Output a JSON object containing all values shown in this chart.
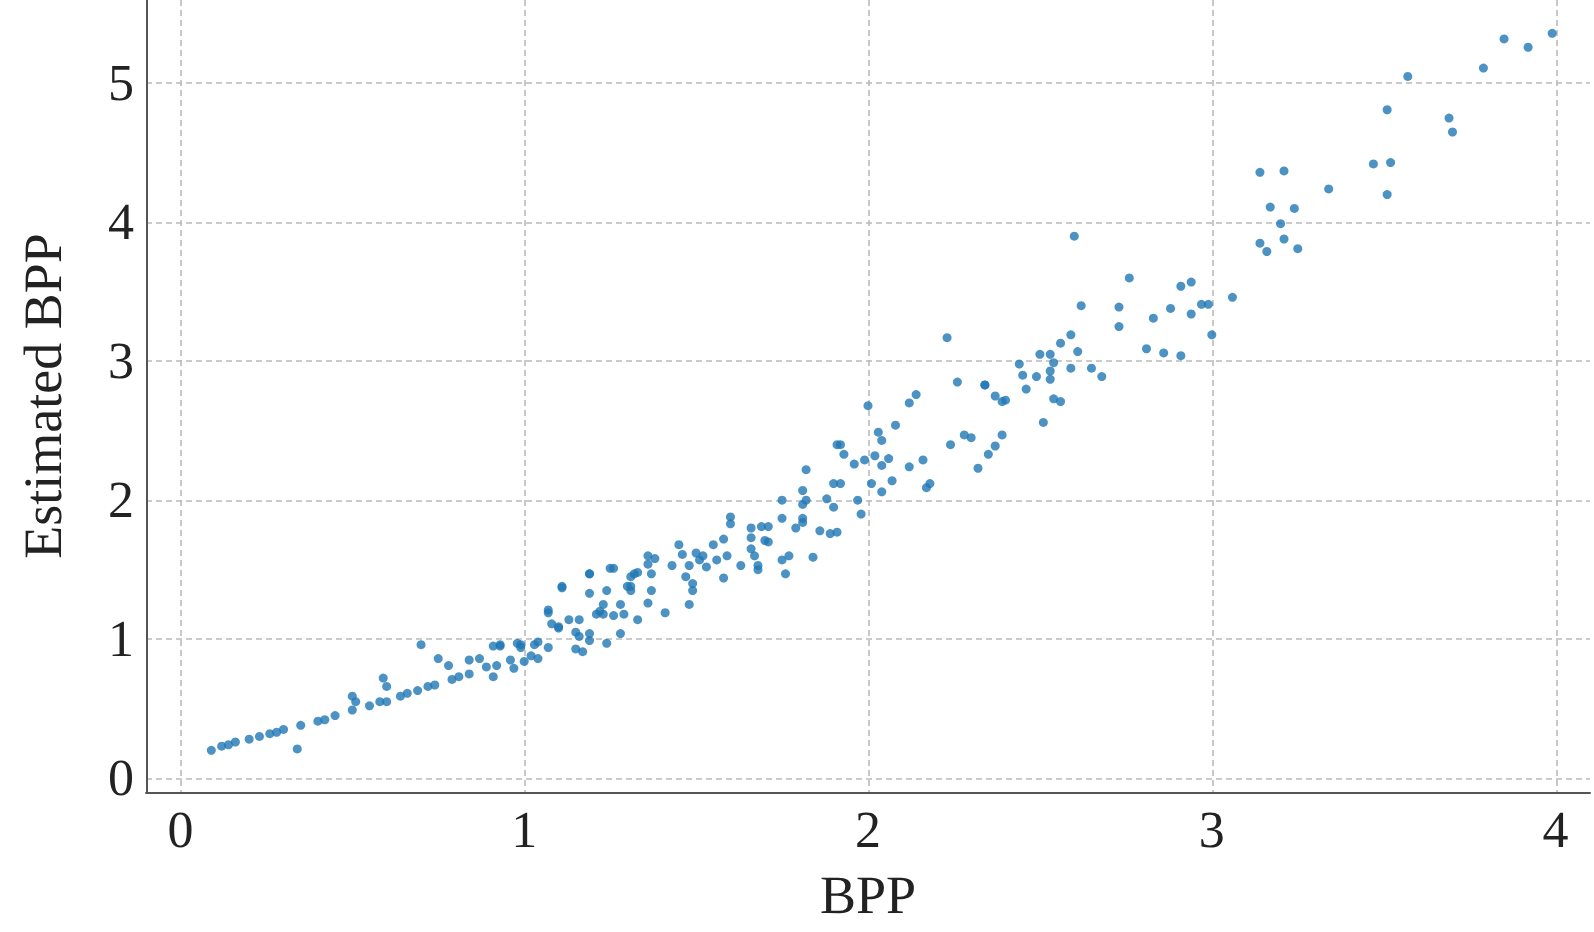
{
  "chart_data": {
    "type": "scatter",
    "xlabel": "BPP",
    "ylabel": "Estimated BPP",
    "xlim": [
      -0.1,
      4.1
    ],
    "ylim": [
      -0.1,
      5.6
    ],
    "xticks": [
      0,
      1,
      2,
      3,
      4
    ],
    "yticks": [
      0,
      1,
      2,
      3,
      4,
      5
    ],
    "grid": true,
    "marker": "circle",
    "series": [
      {
        "color": "#1f77b4",
        "x": [
          3.99,
          3.85,
          3.92,
          3.79,
          3.57,
          3.51,
          3.69,
          3.7,
          3.47,
          3.52,
          3.51,
          3.34,
          3.14,
          3.21,
          3.17,
          3.24,
          3.2,
          3.21,
          3.14,
          3.16,
          3.25,
          3.06,
          3.0,
          2.99,
          2.97,
          2.94,
          2.91,
          2.94,
          2.88,
          2.91,
          2.86,
          2.81,
          2.83,
          2.76,
          2.73,
          2.73,
          2.6,
          2.62,
          2.59,
          2.61,
          2.56,
          2.65,
          2.68,
          2.59,
          2.54,
          2.53,
          2.5,
          2.44,
          2.45,
          2.49,
          2.46,
          2.53,
          2.53,
          2.54,
          2.56,
          2.51,
          2.34,
          2.37,
          2.4,
          2.23,
          2.26,
          2.34,
          2.39,
          2.0,
          2.12,
          2.14,
          2.03,
          2.04,
          2.08,
          2.24,
          2.28,
          2.3,
          2.32,
          2.35,
          2.37,
          2.39,
          2.12,
          2.16,
          2.17,
          2.18,
          1.91,
          1.92,
          1.93,
          1.96,
          1.99,
          2.02,
          2.06,
          2.04,
          2.07,
          2.04,
          2.01,
          1.97,
          1.98,
          1.82,
          1.9,
          1.92,
          1.75,
          1.81,
          1.81,
          1.82,
          1.88,
          1.9,
          1.75,
          1.81,
          1.81,
          1.79,
          1.86,
          1.89,
          1.91,
          1.84,
          1.76,
          1.75,
          1.77,
          1.6,
          1.6,
          1.66,
          1.69,
          1.71,
          1.66,
          1.7,
          1.71,
          1.66,
          1.67,
          1.68,
          1.68,
          1.63,
          1.58,
          1.58,
          1.55,
          1.59,
          1.56,
          1.45,
          1.46,
          1.5,
          1.52,
          1.51,
          1.53,
          1.48,
          1.43,
          1.47,
          1.49,
          1.49,
          1.48,
          1.36,
          1.38,
          1.36,
          1.37,
          1.33,
          1.31,
          1.32,
          1.37,
          1.31,
          1.31,
          1.36,
          1.41,
          1.19,
          1.26,
          1.11,
          1.19,
          1.24,
          1.23,
          1.28,
          1.29,
          1.33,
          1.26,
          1.07,
          1.08,
          1.1,
          1.13,
          1.16,
          1.15,
          1.16,
          1.19,
          1.23,
          1.21,
          1.22,
          1.28,
          1.17,
          1.15,
          1.19,
          1.24,
          0.91,
          0.93,
          0.98,
          0.99,
          0.96,
          1.0,
          1.02,
          1.04,
          1.04,
          1.07,
          0.92,
          0.97,
          0.91,
          0.7,
          0.59,
          0.6,
          0.75,
          0.78,
          0.84,
          0.87,
          0.93,
          0.99,
          1.03,
          1.07,
          1.1,
          1.11,
          1.19,
          1.25,
          1.3,
          0.09,
          0.12,
          0.16,
          0.2,
          0.23,
          0.26,
          0.3,
          0.35,
          0.4,
          0.45,
          0.5,
          0.55,
          0.6,
          0.64,
          0.69,
          0.74,
          0.79,
          0.84,
          0.89,
          0.34,
          0.5,
          0.51,
          0.14,
          0.28,
          0.42,
          0.58,
          0.72,
          0.66,
          0.81
        ],
        "values": [
          5.36,
          5.32,
          5.26,
          5.11,
          5.05,
          4.81,
          4.75,
          4.65,
          4.42,
          4.43,
          4.2,
          4.24,
          4.36,
          4.37,
          4.11,
          4.1,
          3.99,
          3.88,
          3.85,
          3.79,
          3.81,
          3.46,
          3.19,
          3.41,
          3.41,
          3.57,
          3.54,
          3.34,
          3.38,
          3.04,
          3.06,
          3.09,
          3.31,
          3.6,
          3.39,
          3.25,
          3.9,
          3.4,
          3.19,
          3.07,
          3.13,
          2.95,
          2.89,
          2.95,
          2.99,
          3.05,
          3.05,
          2.98,
          2.9,
          2.89,
          2.8,
          2.93,
          2.87,
          2.73,
          2.71,
          2.56,
          2.83,
          2.75,
          2.72,
          3.17,
          2.85,
          2.83,
          2.71,
          2.68,
          2.7,
          2.76,
          2.49,
          2.43,
          2.54,
          2.4,
          2.47,
          2.45,
          2.23,
          2.33,
          2.39,
          2.47,
          2.24,
          2.29,
          2.09,
          2.12,
          2.4,
          2.4,
          2.33,
          2.26,
          2.29,
          2.32,
          2.3,
          2.25,
          2.14,
          2.06,
          2.12,
          2.0,
          1.9,
          2.22,
          2.12,
          2.12,
          2.0,
          2.07,
          1.97,
          2.0,
          2.01,
          1.95,
          1.87,
          1.87,
          1.84,
          1.8,
          1.78,
          1.76,
          1.77,
          1.59,
          1.47,
          1.57,
          1.6,
          1.88,
          1.83,
          1.8,
          1.81,
          1.81,
          1.73,
          1.71,
          1.7,
          1.65,
          1.6,
          1.53,
          1.5,
          1.53,
          1.44,
          1.72,
          1.68,
          1.6,
          1.57,
          1.68,
          1.61,
          1.62,
          1.6,
          1.57,
          1.52,
          1.53,
          1.53,
          1.45,
          1.4,
          1.35,
          1.25,
          1.6,
          1.58,
          1.54,
          1.47,
          1.48,
          1.45,
          1.47,
          1.35,
          1.35,
          1.38,
          1.26,
          1.19,
          1.47,
          1.51,
          1.37,
          1.33,
          1.35,
          1.25,
          1.25,
          1.18,
          1.14,
          1.17,
          1.19,
          1.11,
          1.08,
          1.14,
          1.14,
          1.05,
          1.02,
          1.04,
          1.18,
          1.18,
          1.2,
          1.04,
          0.91,
          0.93,
          0.99,
          0.97,
          0.95,
          0.96,
          0.97,
          0.94,
          0.85,
          0.84,
          0.88,
          0.86,
          0.98,
          0.94,
          0.81,
          0.79,
          0.73,
          0.96,
          0.72,
          0.66,
          0.86,
          0.81,
          0.85,
          0.86,
          0.95,
          0.96,
          0.96,
          1.21,
          1.09,
          1.38,
          1.47,
          1.51,
          1.38,
          0.2,
          0.23,
          0.26,
          0.28,
          0.3,
          0.32,
          0.35,
          0.38,
          0.41,
          0.45,
          0.49,
          0.52,
          0.55,
          0.59,
          0.63,
          0.67,
          0.71,
          0.75,
          0.8,
          0.21,
          0.59,
          0.55,
          0.24,
          0.33,
          0.42,
          0.55,
          0.66,
          0.61,
          0.73
        ]
      }
    ]
  }
}
